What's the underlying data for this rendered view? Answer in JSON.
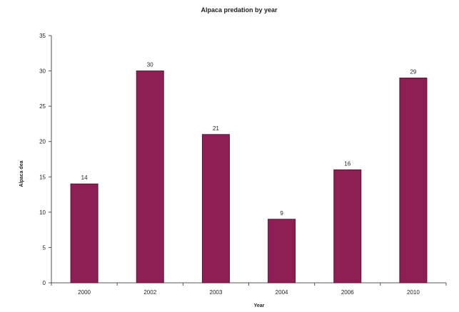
{
  "chart_data": {
    "type": "bar",
    "title": "Alpaca predation by year",
    "xlabel": "Year",
    "ylabel": "Alpaca dea",
    "categories": [
      "2000",
      "2002",
      "2003",
      "2004",
      "2006",
      "2010"
    ],
    "values": [
      14,
      30,
      21,
      9,
      16,
      29
    ],
    "data_labels": [
      "14",
      "30",
      "21",
      "9",
      "16",
      "29"
    ],
    "ylim": [
      0,
      35
    ],
    "yticks": [
      "0",
      "5",
      "10",
      "15",
      "20",
      "25",
      "30",
      "35"
    ],
    "grid": false,
    "legend": "none",
    "bar_color": "#8e1f55",
    "bar_edge_color": "#5a1236"
  }
}
